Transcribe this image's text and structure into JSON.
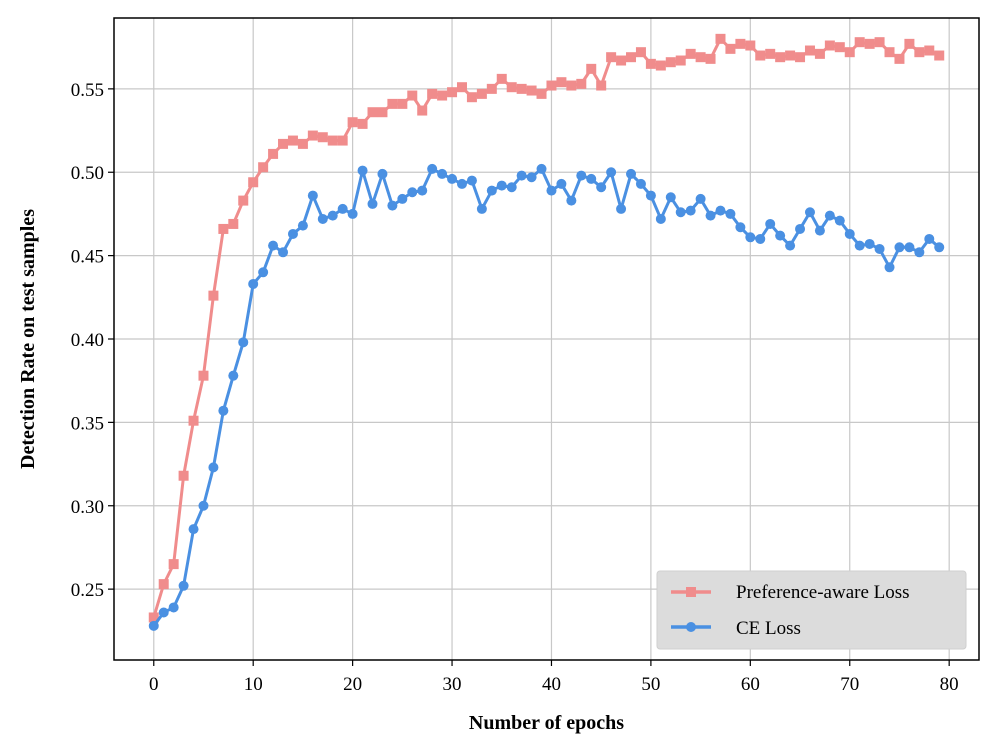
{
  "chart_data": {
    "type": "line",
    "xlabel": "Number of epochs",
    "ylabel": "Detection Rate on test samples",
    "xlim": [
      -4,
      83
    ],
    "ylim": [
      0.2075,
      0.5925
    ],
    "xticks": [
      0,
      10,
      20,
      30,
      40,
      50,
      60,
      70,
      80
    ],
    "yticks": [
      0.25,
      0.3,
      0.35,
      0.4,
      0.45,
      0.5,
      0.55
    ],
    "grid": true,
    "legend_position": "lower-right",
    "series": [
      {
        "name": "Preference-aware Loss",
        "color": "#f08c8c",
        "marker": "square",
        "x": [
          0,
          1,
          2,
          3,
          4,
          5,
          6,
          7,
          8,
          9,
          10,
          11,
          12,
          13,
          14,
          15,
          16,
          17,
          18,
          19,
          20,
          21,
          22,
          23,
          24,
          25,
          26,
          27,
          28,
          29,
          30,
          31,
          32,
          33,
          34,
          35,
          36,
          37,
          38,
          39,
          40,
          41,
          42,
          43,
          44,
          45,
          46,
          47,
          48,
          49,
          50,
          51,
          52,
          53,
          54,
          55,
          56,
          57,
          58,
          59,
          60,
          61,
          62,
          63,
          64,
          65,
          66,
          67,
          68,
          69,
          70,
          71,
          72,
          73,
          74,
          75,
          76,
          77,
          78,
          79
        ],
        "values": [
          0.233,
          0.253,
          0.265,
          0.318,
          0.351,
          0.378,
          0.426,
          0.466,
          0.469,
          0.483,
          0.494,
          0.503,
          0.511,
          0.517,
          0.519,
          0.517,
          0.522,
          0.521,
          0.519,
          0.519,
          0.53,
          0.529,
          0.536,
          0.536,
          0.541,
          0.541,
          0.546,
          0.537,
          0.547,
          0.546,
          0.548,
          0.551,
          0.545,
          0.547,
          0.55,
          0.556,
          0.551,
          0.55,
          0.549,
          0.547,
          0.552,
          0.554,
          0.552,
          0.553,
          0.562,
          0.552,
          0.569,
          0.567,
          0.569,
          0.572,
          0.565,
          0.564,
          0.566,
          0.567,
          0.571,
          0.569,
          0.568,
          0.58,
          0.574,
          0.577,
          0.576,
          0.57,
          0.571,
          0.569,
          0.57,
          0.569,
          0.573,
          0.571,
          0.576,
          0.575,
          0.572,
          0.578,
          0.577,
          0.578,
          0.572,
          0.568,
          0.577,
          0.572,
          0.573,
          0.57
        ]
      },
      {
        "name": "CE Loss",
        "color": "#4a90e2",
        "marker": "circle",
        "x": [
          0,
          1,
          2,
          3,
          4,
          5,
          6,
          7,
          8,
          9,
          10,
          11,
          12,
          13,
          14,
          15,
          16,
          17,
          18,
          19,
          20,
          21,
          22,
          23,
          24,
          25,
          26,
          27,
          28,
          29,
          30,
          31,
          32,
          33,
          34,
          35,
          36,
          37,
          38,
          39,
          40,
          41,
          42,
          43,
          44,
          45,
          46,
          47,
          48,
          49,
          50,
          51,
          52,
          53,
          54,
          55,
          56,
          57,
          58,
          59,
          60,
          61,
          62,
          63,
          64,
          65,
          66,
          67,
          68,
          69,
          70,
          71,
          72,
          73,
          74,
          75,
          76,
          77,
          78,
          79
        ],
        "values": [
          0.228,
          0.236,
          0.239,
          0.252,
          0.286,
          0.3,
          0.323,
          0.357,
          0.378,
          0.398,
          0.433,
          0.44,
          0.456,
          0.452,
          0.463,
          0.468,
          0.486,
          0.472,
          0.474,
          0.478,
          0.475,
          0.501,
          0.481,
          0.499,
          0.48,
          0.484,
          0.488,
          0.489,
          0.502,
          0.499,
          0.496,
          0.493,
          0.495,
          0.478,
          0.489,
          0.492,
          0.491,
          0.498,
          0.497,
          0.502,
          0.489,
          0.493,
          0.483,
          0.498,
          0.496,
          0.491,
          0.5,
          0.478,
          0.499,
          0.493,
          0.486,
          0.472,
          0.485,
          0.476,
          0.477,
          0.484,
          0.474,
          0.477,
          0.475,
          0.467,
          0.461,
          0.46,
          0.469,
          0.462,
          0.456,
          0.466,
          0.476,
          0.465,
          0.474,
          0.471,
          0.463,
          0.456,
          0.457,
          0.454,
          0.443,
          0.455,
          0.455,
          0.452,
          0.46,
          0.455
        ]
      }
    ]
  }
}
